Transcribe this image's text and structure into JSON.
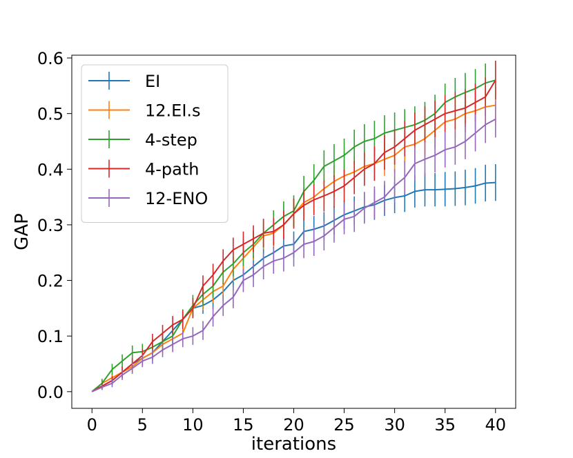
{
  "chart_data": {
    "type": "line",
    "title": "",
    "xlabel": "iterations",
    "ylabel": "GAP",
    "xlim": [
      -2,
      42
    ],
    "ylim": [
      -0.03,
      0.605
    ],
    "xticks": [
      0,
      5,
      10,
      15,
      20,
      25,
      30,
      35,
      40
    ],
    "xtick_labels": [
      "0",
      "5",
      "10",
      "15",
      "20",
      "25",
      "30",
      "35",
      "40"
    ],
    "yticks": [
      0.0,
      0.1,
      0.2,
      0.3,
      0.4,
      0.5,
      0.6
    ],
    "ytick_labels": [
      "0.0",
      "0.1",
      "0.2",
      "0.3",
      "0.4",
      "0.5",
      "0.6"
    ],
    "grid": false,
    "legend_position": "top-left",
    "x": [
      0,
      1,
      2,
      3,
      4,
      5,
      6,
      7,
      8,
      9,
      10,
      11,
      12,
      13,
      14,
      15,
      16,
      17,
      18,
      19,
      20,
      21,
      22,
      23,
      24,
      25,
      26,
      27,
      28,
      29,
      30,
      31,
      32,
      33,
      34,
      35,
      36,
      37,
      38,
      39,
      40
    ],
    "series": [
      {
        "name": "EI",
        "color": "#1f77b4",
        "values": [
          0.0,
          0.01,
          0.02,
          0.035,
          0.05,
          0.06,
          0.07,
          0.09,
          0.11,
          0.13,
          0.15,
          0.155,
          0.165,
          0.18,
          0.2,
          0.21,
          0.225,
          0.24,
          0.25,
          0.262,
          0.265,
          0.288,
          0.292,
          0.298,
          0.308,
          0.318,
          0.325,
          0.332,
          0.336,
          0.344,
          0.349,
          0.352,
          0.36,
          0.363,
          0.363,
          0.364,
          0.365,
          0.367,
          0.37,
          0.375,
          0.376
        ],
        "errors": [
          0.0,
          0.004,
          0.006,
          0.007,
          0.008,
          0.009,
          0.01,
          0.011,
          0.012,
          0.013,
          0.014,
          0.015,
          0.016,
          0.017,
          0.018,
          0.019,
          0.02,
          0.021,
          0.022,
          0.022,
          0.023,
          0.024,
          0.024,
          0.025,
          0.025,
          0.026,
          0.026,
          0.027,
          0.027,
          0.028,
          0.028,
          0.029,
          0.029,
          0.03,
          0.03,
          0.031,
          0.031,
          0.032,
          0.032,
          0.033,
          0.033
        ]
      },
      {
        "name": "12.EI.s",
        "color": "#ff7f0e",
        "values": [
          0.0,
          0.015,
          0.025,
          0.035,
          0.045,
          0.06,
          0.07,
          0.085,
          0.095,
          0.105,
          0.15,
          0.165,
          0.18,
          0.19,
          0.22,
          0.24,
          0.26,
          0.28,
          0.285,
          0.3,
          0.32,
          0.34,
          0.35,
          0.365,
          0.378,
          0.388,
          0.395,
          0.405,
          0.41,
          0.418,
          0.425,
          0.44,
          0.445,
          0.455,
          0.47,
          0.485,
          0.49,
          0.5,
          0.505,
          0.512,
          0.515
        ],
        "errors": [
          0.0,
          0.006,
          0.008,
          0.01,
          0.011,
          0.012,
          0.014,
          0.015,
          0.016,
          0.017,
          0.018,
          0.019,
          0.02,
          0.021,
          0.022,
          0.023,
          0.024,
          0.024,
          0.025,
          0.025,
          0.026,
          0.026,
          0.027,
          0.027,
          0.028,
          0.028,
          0.029,
          0.029,
          0.03,
          0.03,
          0.031,
          0.031,
          0.032,
          0.032,
          0.032,
          0.033,
          0.033,
          0.033,
          0.034,
          0.034,
          0.034
        ]
      },
      {
        "name": "4-step",
        "color": "#2ca02c",
        "values": [
          0.0,
          0.015,
          0.04,
          0.055,
          0.07,
          0.072,
          0.08,
          0.09,
          0.1,
          0.13,
          0.155,
          0.175,
          0.19,
          0.215,
          0.23,
          0.25,
          0.265,
          0.285,
          0.3,
          0.315,
          0.325,
          0.36,
          0.38,
          0.405,
          0.415,
          0.425,
          0.44,
          0.45,
          0.455,
          0.465,
          0.47,
          0.475,
          0.48,
          0.488,
          0.5,
          0.52,
          0.53,
          0.538,
          0.545,
          0.555,
          0.56
        ],
        "errors": [
          0.0,
          0.008,
          0.01,
          0.012,
          0.013,
          0.014,
          0.015,
          0.016,
          0.017,
          0.018,
          0.019,
          0.02,
          0.021,
          0.022,
          0.023,
          0.024,
          0.025,
          0.026,
          0.026,
          0.027,
          0.028,
          0.028,
          0.029,
          0.029,
          0.03,
          0.03,
          0.031,
          0.031,
          0.032,
          0.032,
          0.032,
          0.033,
          0.033,
          0.033,
          0.034,
          0.034,
          0.034,
          0.035,
          0.035,
          0.035,
          0.035
        ]
      },
      {
        "name": "4-path",
        "color": "#d62728",
        "values": [
          0.0,
          0.01,
          0.02,
          0.035,
          0.05,
          0.065,
          0.09,
          0.105,
          0.12,
          0.13,
          0.15,
          0.19,
          0.21,
          0.235,
          0.255,
          0.265,
          0.275,
          0.285,
          0.288,
          0.3,
          0.32,
          0.335,
          0.345,
          0.352,
          0.36,
          0.37,
          0.385,
          0.4,
          0.41,
          0.43,
          0.44,
          0.455,
          0.47,
          0.48,
          0.49,
          0.5,
          0.505,
          0.51,
          0.52,
          0.53,
          0.56
        ],
        "errors": [
          0.0,
          0.006,
          0.008,
          0.01,
          0.011,
          0.012,
          0.014,
          0.015,
          0.016,
          0.017,
          0.018,
          0.019,
          0.02,
          0.021,
          0.022,
          0.023,
          0.024,
          0.025,
          0.025,
          0.026,
          0.027,
          0.027,
          0.028,
          0.028,
          0.029,
          0.029,
          0.03,
          0.03,
          0.031,
          0.031,
          0.032,
          0.032,
          0.032,
          0.033,
          0.033,
          0.033,
          0.034,
          0.034,
          0.034,
          0.035,
          0.035
        ]
      },
      {
        "name": "12-ENO",
        "color": "#9467bd",
        "values": [
          0.0,
          0.008,
          0.015,
          0.03,
          0.042,
          0.055,
          0.062,
          0.075,
          0.085,
          0.095,
          0.1,
          0.11,
          0.135,
          0.155,
          0.17,
          0.2,
          0.21,
          0.225,
          0.235,
          0.24,
          0.25,
          0.265,
          0.27,
          0.28,
          0.295,
          0.31,
          0.315,
          0.33,
          0.34,
          0.35,
          0.37,
          0.385,
          0.41,
          0.418,
          0.425,
          0.435,
          0.44,
          0.45,
          0.465,
          0.48,
          0.49
        ],
        "errors": [
          0.0,
          0.005,
          0.007,
          0.009,
          0.01,
          0.011,
          0.012,
          0.013,
          0.014,
          0.015,
          0.016,
          0.017,
          0.018,
          0.019,
          0.02,
          0.021,
          0.022,
          0.023,
          0.023,
          0.024,
          0.025,
          0.025,
          0.026,
          0.026,
          0.027,
          0.027,
          0.028,
          0.028,
          0.029,
          0.029,
          0.03,
          0.03,
          0.031,
          0.031,
          0.031,
          0.032,
          0.032,
          0.032,
          0.033,
          0.033,
          0.033
        ]
      }
    ]
  }
}
